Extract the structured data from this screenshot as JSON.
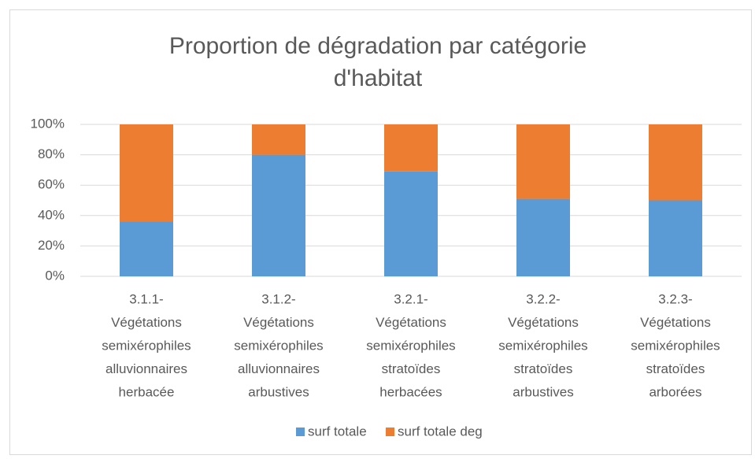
{
  "chart_data": {
    "type": "stacked_bar",
    "title": "Proportion de dégradation par catégorie d'habitat",
    "categories": [
      [
        "3.1.1-",
        "Végétations",
        "semixérophiles",
        "alluvionnaires",
        "herbacée"
      ],
      [
        "3.1.2-",
        "Végétations",
        "semixérophiles",
        "alluvionnaires",
        "arbustives"
      ],
      [
        "3.2.1-",
        "Végétations",
        "semixérophiles",
        "stratoïdes",
        "herbacées"
      ],
      [
        "3.2.2-",
        "Végétations",
        "semixérophiles",
        "stratoïdes",
        "arbustives"
      ],
      [
        "3.2.3-",
        "Végétations",
        "semixérophiles",
        "stratoïdes",
        "arborées"
      ]
    ],
    "series": [
      {
        "name": "surf totale",
        "color": "#5b9bd5",
        "values": [
          36,
          80,
          69,
          51,
          50
        ]
      },
      {
        "name": "surf totale deg",
        "color": "#ed7d31",
        "values": [
          64,
          20,
          31,
          49,
          50
        ]
      }
    ],
    "ylim": [
      0,
      100
    ],
    "yticks": [
      {
        "value": 0,
        "label": "0%"
      },
      {
        "value": 20,
        "label": "20%"
      },
      {
        "value": 40,
        "label": "40%"
      },
      {
        "value": 60,
        "label": "60%"
      },
      {
        "value": 80,
        "label": "80%"
      },
      {
        "value": 100,
        "label": "100%"
      }
    ],
    "grid": true,
    "legend": "bottom"
  }
}
